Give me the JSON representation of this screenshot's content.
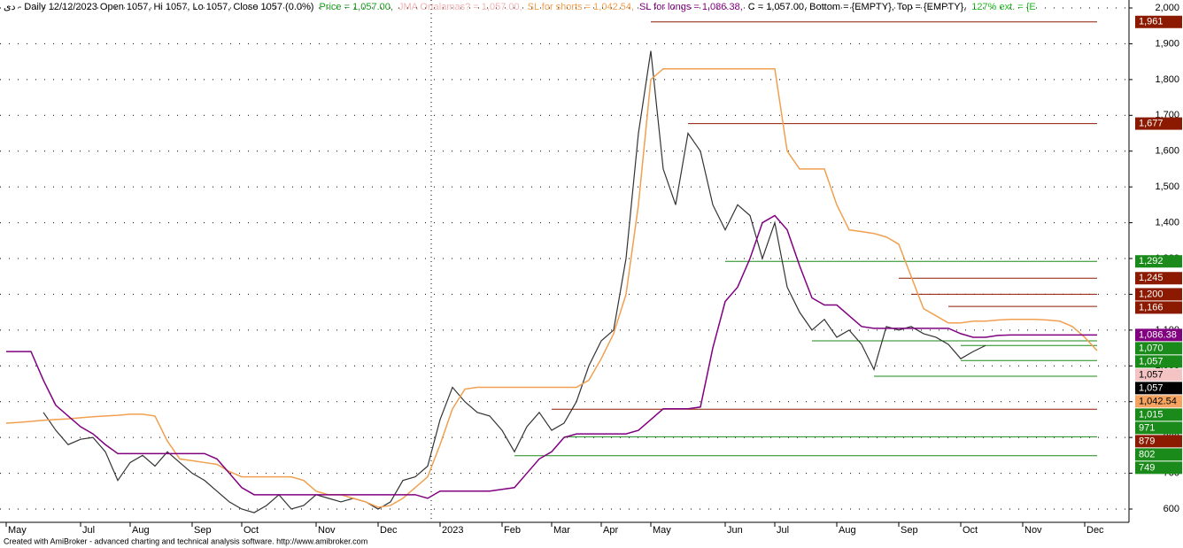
{
  "header": {
    "parts": [
      {
        "text": "دی - Daily 12/12/2023 Open 1057, Hi 1057, Lo 1057, Close 1057 (0.0%)",
        "color": "#000000"
      },
      {
        "text": "Price = 1,057.00,",
        "color": "#1a9a1a"
      },
      {
        "text": "JMA Ortalamas? = 1,057.00,",
        "color": "#f0b4b4"
      },
      {
        "text": "SL for shorts = 1,042.54,",
        "color": "#f0a050"
      },
      {
        "text": "SL for longs = 1,086.38,",
        "color": "#800080"
      },
      {
        "text": "C = 1,057.00, Bottom = {EMPTY}, Top = {EMPTY},",
        "color": "#000000"
      },
      {
        "text": "127% ext. = {E",
        "color": "#22bb22"
      }
    ]
  },
  "footer": "Created with AmiBroker - advanced charting and technical analysis software. http://www.amibroker.com",
  "chart_data": {
    "type": "line",
    "categories": [
      "May",
      null,
      null,
      null,
      null,
      null,
      "Jul",
      null,
      null,
      null,
      "Aug",
      null,
      null,
      null,
      null,
      "Sep",
      null,
      null,
      null,
      "Oct",
      null,
      null,
      null,
      null,
      null,
      "Nov",
      null,
      null,
      null,
      null,
      "Dec",
      null,
      null,
      null,
      null,
      "2023",
      null,
      null,
      null,
      null,
      "Feb",
      null,
      null,
      null,
      "Mar",
      null,
      null,
      null,
      "Apr",
      null,
      null,
      null,
      "May",
      null,
      null,
      null,
      null,
      null,
      "Jun",
      null,
      null,
      null,
      "Jul",
      null,
      null,
      null,
      null,
      "Aug",
      null,
      null,
      null,
      null,
      "Sep",
      null,
      null,
      null,
      null,
      "Oct",
      null,
      null,
      null,
      null,
      "Nov",
      null,
      null,
      null,
      null,
      "Dec",
      null,
      null,
      null
    ],
    "series": [
      {
        "name": "Price",
        "color": "#333333",
        "values": [
          null,
          null,
          null,
          870,
          820,
          780,
          795,
          800,
          760,
          680,
          730,
          750,
          720,
          760,
          730,
          700,
          680,
          650,
          620,
          600,
          590,
          610,
          640,
          600,
          610,
          640,
          630,
          620,
          630,
          620,
          600,
          620,
          680,
          690,
          720,
          850,
          940,
          900,
          870,
          860,
          820,
          760,
          830,
          870,
          820,
          840,
          900,
          1000,
          1070,
          1100,
          1300,
          1650,
          1880,
          1550,
          1450,
          1650,
          1600,
          1450,
          1380,
          1450,
          1420,
          1300,
          1400,
          1220,
          1150,
          1100,
          1130,
          1080,
          1100,
          1060,
          990,
          1110,
          1100,
          1110,
          1090,
          1080,
          1060,
          1020,
          1040,
          1057,
          null,
          null,
          null,
          null,
          null,
          null,
          null,
          null,
          null,
          null,
          null
        ]
      },
      {
        "name": "SL for shorts",
        "color": "#f0a050",
        "values": [
          840,
          842,
          845,
          848,
          850,
          852,
          855,
          858,
          860,
          862,
          865,
          865,
          860,
          790,
          740,
          735,
          730,
          725,
          705,
          690,
          690,
          690,
          690,
          690,
          680,
          650,
          640,
          640,
          630,
          620,
          605,
          610,
          630,
          660,
          690,
          780,
          880,
          935,
          940,
          940,
          940,
          940,
          940,
          940,
          940,
          940,
          940,
          960,
          1020,
          1090,
          1200,
          1450,
          1800,
          1830,
          1830,
          1830,
          1830,
          1830,
          1830,
          1830,
          1830,
          1830,
          1830,
          1600,
          1550,
          1550,
          1550,
          1450,
          1380,
          1375,
          1370,
          1360,
          1340,
          1250,
          1160,
          1140,
          1120,
          1120,
          1125,
          1125,
          1128,
          1130,
          1130,
          1130,
          1128,
          1125,
          1110,
          1080,
          1042.54,
          null,
          null
        ]
      },
      {
        "name": "SL for longs",
        "color": "#800080",
        "values": [
          1040,
          1040,
          1040,
          960,
          890,
          860,
          830,
          810,
          780,
          755,
          755,
          755,
          755,
          755,
          755,
          755,
          755,
          740,
          700,
          660,
          640,
          640,
          640,
          640,
          640,
          640,
          640,
          640,
          640,
          640,
          640,
          640,
          640,
          640,
          630,
          650,
          650,
          650,
          650,
          650,
          655,
          660,
          700,
          740,
          760,
          800,
          810,
          810,
          810,
          810,
          810,
          820,
          850,
          880,
          880,
          880,
          885,
          1050,
          1180,
          1220,
          1300,
          1400,
          1420,
          1380,
          1280,
          1190,
          1170,
          1170,
          1140,
          1110,
          1105,
          1105,
          1105,
          1105,
          1105,
          1105,
          1105,
          1090,
          1080,
          1080,
          1085,
          1086.38,
          1086.38,
          1086.38,
          1086.38,
          1086.38,
          1086.38,
          1086.38,
          1086.38,
          null,
          null
        ]
      }
    ],
    "levels": [
      {
        "value": 1961,
        "label": "1,961",
        "color": "#8b1a00",
        "from": 52
      },
      {
        "value": 1677,
        "label": "1,677",
        "color": "#8b1a00",
        "from": 55
      },
      {
        "value": 1292,
        "label": "1,292",
        "color": "#1a8a1a",
        "from": 58
      },
      {
        "value": 1245,
        "label": "1,245",
        "color": "#8b1a00",
        "from": 72
      },
      {
        "value": 1200,
        "label": "1,200",
        "color": "#8b1a00",
        "from": 73
      },
      {
        "value": 1166,
        "label": "1,166",
        "color": "#8b1a00",
        "from": 76
      },
      {
        "value": 1070,
        "label": "1,070",
        "color": "#1a8a1a",
        "from": 65
      },
      {
        "value": 1057,
        "label": "1,057",
        "color": "#1a8a1a",
        "from": 77
      },
      {
        "value": 1015,
        "label": "1,015",
        "color": "#1a8a1a",
        "from": 77
      },
      {
        "value": 971,
        "label": "971",
        "color": "#1a8a1a",
        "from": 70
      },
      {
        "value": 879,
        "label": "879",
        "color": "#8b1a00",
        "from": 44
      },
      {
        "value": 802,
        "label": "802",
        "color": "#1a8a1a",
        "from": 45
      },
      {
        "value": 749,
        "label": "749",
        "color": "#1a8a1a",
        "from": 41
      }
    ],
    "badges": [
      {
        "value": 1086.38,
        "label": "1,086.38",
        "color": "#800080"
      },
      {
        "value": 1057,
        "label": "1,057",
        "color": "#f4c4c4"
      },
      {
        "value": 1057,
        "label": "1,057",
        "color": "#000000"
      },
      {
        "value": 1042.54,
        "label": "1,042.54",
        "color": "#f4a460"
      }
    ],
    "ylim": [
      600,
      2000
    ],
    "yticks": [
      {
        "value": 600,
        "label": "600"
      },
      {
        "value": 700,
        "label": "700"
      },
      {
        "value": 800,
        "label": "800"
      },
      {
        "value": 900,
        "label": "900"
      },
      {
        "value": 1000,
        "label": "1,000"
      },
      {
        "value": 1100,
        "label": "1,100"
      },
      {
        "value": 1200,
        "label": "1,200"
      },
      {
        "value": 1300,
        "label": "1,300"
      },
      {
        "value": 1400,
        "label": "1,400"
      },
      {
        "value": 1500,
        "label": "1,500"
      },
      {
        "value": 1600,
        "label": "1,600"
      },
      {
        "value": 1700,
        "label": "1,700"
      },
      {
        "value": 1800,
        "label": "1,800"
      },
      {
        "value": 1900,
        "label": "1,900"
      },
      {
        "value": 2000,
        "label": "2,000"
      }
    ],
    "grid": true
  }
}
